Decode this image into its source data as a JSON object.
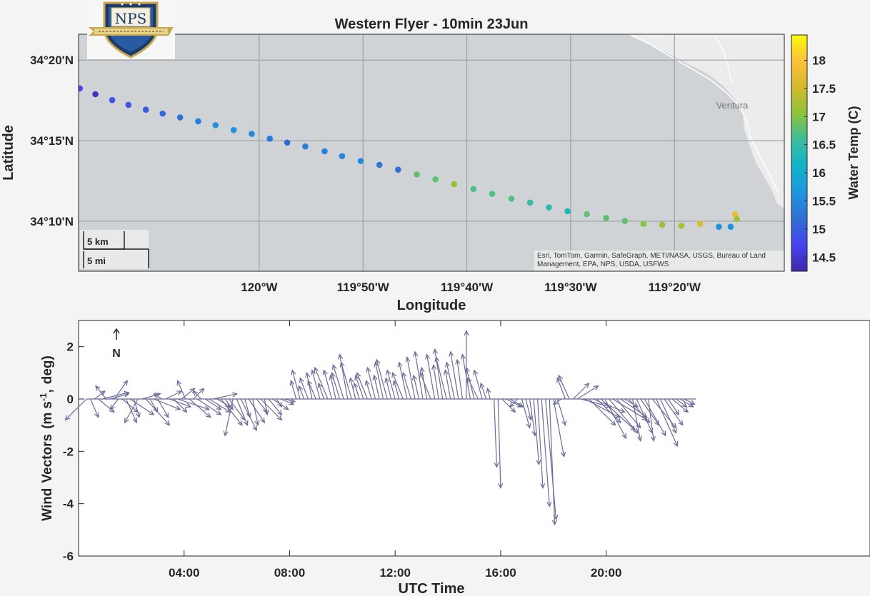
{
  "colors": {
    "sea": "#cfd3d5",
    "land": "#ececec",
    "grid": "#9aa0a4",
    "arrow": "#6b6b9a",
    "colormap": [
      "#3e26a8",
      "#4743f4",
      "#2f6fd2",
      "#1f96e1",
      "#0fb3c8",
      "#3cbd9b",
      "#8cc33a",
      "#d2b92b",
      "#fdc13a",
      "#f9fb0e"
    ]
  },
  "icons": {
    "logo": "nps-shield-logo",
    "north": "north-arrow-icon"
  },
  "logo": {
    "text": "NPS"
  },
  "chart_data": [
    {
      "type": "scatter",
      "title": "Western Flyer - 10min 23Jun",
      "xlabel": "Longitude",
      "ylabel": "Latitude",
      "xlim": [
        -120.29,
        -119.157
      ],
      "ylim": [
        34.115,
        34.36
      ],
      "x_ticks": [
        {
          "value": -120.0,
          "label": "120°W"
        },
        {
          "value": -119.8333,
          "label": "119°50'W"
        },
        {
          "value": -119.6667,
          "label": "119°40'W"
        },
        {
          "value": -119.5,
          "label": "119°30'W"
        },
        {
          "value": -119.3333,
          "label": "119°20'W"
        }
      ],
      "y_ticks": [
        {
          "value": 34.1667,
          "label": "34°10'N"
        },
        {
          "value": 34.25,
          "label": "34°15'N"
        },
        {
          "value": 34.3333,
          "label": "34°20'N"
        }
      ],
      "grid": true,
      "place_label": "Ventura",
      "scalebar": [
        "5 km",
        "5 mi"
      ],
      "attribution": "Esri, TomTom, Garmin, SafeGraph, METI/NASA, USGS, Bureau of Land Management, EPA, NPS, USDA, USFWS",
      "colorbar": {
        "label": "Water Temp (C)",
        "clim": [
          14.25,
          18.45
        ],
        "ticks": [
          {
            "value": 14.5,
            "label": "14.5"
          },
          {
            "value": 15,
            "label": "15"
          },
          {
            "value": 15.5,
            "label": "15.5"
          },
          {
            "value": 16,
            "label": "16"
          },
          {
            "value": 16.5,
            "label": "16.5"
          },
          {
            "value": 17,
            "label": "17"
          },
          {
            "value": 17.5,
            "label": "17.5"
          },
          {
            "value": 18,
            "label": "18"
          }
        ]
      },
      "points": [
        {
          "lon": -120.288,
          "lat": 34.304,
          "temp": 14.7
        },
        {
          "lon": -120.263,
          "lat": 34.298,
          "temp": 14.4
        },
        {
          "lon": -120.236,
          "lat": 34.292,
          "temp": 14.9
        },
        {
          "lon": -120.21,
          "lat": 34.287,
          "temp": 14.9
        },
        {
          "lon": -120.182,
          "lat": 34.282,
          "temp": 15.0
        },
        {
          "lon": -120.155,
          "lat": 34.278,
          "temp": 15.1
        },
        {
          "lon": -120.127,
          "lat": 34.274,
          "temp": 15.2
        },
        {
          "lon": -120.098,
          "lat": 34.27,
          "temp": 15.4
        },
        {
          "lon": -120.07,
          "lat": 34.266,
          "temp": 15.6
        },
        {
          "lon": -120.041,
          "lat": 34.261,
          "temp": 15.6
        },
        {
          "lon": -120.012,
          "lat": 34.257,
          "temp": 15.5
        },
        {
          "lon": -119.983,
          "lat": 34.252,
          "temp": 15.3
        },
        {
          "lon": -119.955,
          "lat": 34.248,
          "temp": 15.1
        },
        {
          "lon": -119.926,
          "lat": 34.244,
          "temp": 15.4
        },
        {
          "lon": -119.895,
          "lat": 34.239,
          "temp": 15.4
        },
        {
          "lon": -119.867,
          "lat": 34.234,
          "temp": 15.5
        },
        {
          "lon": -119.837,
          "lat": 34.229,
          "temp": 15.5
        },
        {
          "lon": -119.807,
          "lat": 34.225,
          "temp": 15.3
        },
        {
          "lon": -119.777,
          "lat": 34.22,
          "temp": 15.2
        },
        {
          "lon": -119.747,
          "lat": 34.215,
          "temp": 16.8
        },
        {
          "lon": -119.717,
          "lat": 34.21,
          "temp": 16.8
        },
        {
          "lon": -119.687,
          "lat": 34.205,
          "temp": 17.1
        },
        {
          "lon": -119.656,
          "lat": 34.2,
          "temp": 16.7
        },
        {
          "lon": -119.626,
          "lat": 34.195,
          "temp": 16.7
        },
        {
          "lon": -119.595,
          "lat": 34.19,
          "temp": 16.7
        },
        {
          "lon": -119.565,
          "lat": 34.186,
          "temp": 16.5
        },
        {
          "lon": -119.535,
          "lat": 34.181,
          "temp": 16.4
        },
        {
          "lon": -119.505,
          "lat": 34.177,
          "temp": 16.3
        },
        {
          "lon": -119.474,
          "lat": 34.174,
          "temp": 16.8
        },
        {
          "lon": -119.443,
          "lat": 34.17,
          "temp": 16.8
        },
        {
          "lon": -119.413,
          "lat": 34.167,
          "temp": 16.8
        },
        {
          "lon": -119.383,
          "lat": 34.164,
          "temp": 17.0
        },
        {
          "lon": -119.353,
          "lat": 34.163,
          "temp": 17.1
        },
        {
          "lon": -119.322,
          "lat": 34.162,
          "temp": 17.2
        },
        {
          "lon": -119.292,
          "lat": 34.164,
          "temp": 17.6
        },
        {
          "lon": -119.262,
          "lat": 34.161,
          "temp": 15.6
        },
        {
          "lon": -119.243,
          "lat": 34.161,
          "temp": 15.6
        },
        {
          "lon": -119.236,
          "lat": 34.174,
          "temp": 17.8
        },
        {
          "lon": -119.233,
          "lat": 34.169,
          "temp": 17.2
        }
      ]
    },
    {
      "type": "quiver",
      "xlabel": "UTC Time",
      "ylabel": "Wind Vectors (m s-1, deg)",
      "ylabel_parts": [
        "Wind",
        "Vectors",
        "(m",
        "s",
        "-1",
        ",",
        "deg)"
      ],
      "north_label": "N",
      "xlim": [
        0,
        30
      ],
      "ylim": [
        -6,
        3
      ],
      "x_ticks": [
        {
          "value": 4,
          "label": "04:00"
        },
        {
          "value": 8,
          "label": "08:00"
        },
        {
          "value": 12,
          "label": "12:00"
        },
        {
          "value": 16,
          "label": "16:00"
        },
        {
          "value": 20,
          "label": "20:00"
        }
      ],
      "y_ticks": [
        {
          "value": -6,
          "label": "-6"
        },
        {
          "value": -4,
          "label": "-4"
        },
        {
          "value": -2,
          "label": "-2"
        },
        {
          "value": 0,
          "label": "0"
        },
        {
          "value": 2,
          "label": "2"
        }
      ],
      "vectors": [
        [
          0.3,
          -0.8,
          -0.8
        ],
        [
          0.45,
          0.3,
          -0.7
        ],
        [
          0.6,
          0.4,
          0.3
        ],
        [
          0.75,
          0.6,
          -0.5
        ],
        [
          0.9,
          1.0,
          0.25
        ],
        [
          1.05,
          -0.4,
          0.5
        ],
        [
          1.2,
          0.7,
          0.2
        ],
        [
          1.35,
          0.5,
          0.7
        ],
        [
          1.5,
          -0.3,
          -0.4
        ],
        [
          1.65,
          0.6,
          -0.5
        ],
        [
          1.8,
          0.4,
          -0.9
        ],
        [
          1.95,
          0.9,
          -0.6
        ],
        [
          2.1,
          0.2,
          -0.7
        ],
        [
          2.25,
          -0.5,
          -0.9
        ],
        [
          2.4,
          0.7,
          0.2
        ],
        [
          2.55,
          0.9,
          -1.0
        ],
        [
          2.7,
          0.3,
          -0.5
        ],
        [
          2.85,
          1.0,
          -0.4
        ],
        [
          3.0,
          0.4,
          -0.7
        ],
        [
          3.15,
          -0.3,
          0.2
        ],
        [
          3.3,
          0.6,
          0.3
        ],
        [
          3.45,
          0.8,
          -0.3
        ],
        [
          3.6,
          0.5,
          -0.5
        ],
        [
          3.75,
          1.2,
          -0.4
        ],
        [
          3.9,
          0.5,
          0.4
        ],
        [
          4.05,
          -0.3,
          0.7
        ],
        [
          4.2,
          0.8,
          -0.7
        ],
        [
          4.35,
          0.4,
          0.4
        ],
        [
          4.5,
          0.9,
          -0.6
        ],
        [
          4.65,
          -0.3,
          0.3
        ],
        [
          4.8,
          0.6,
          -0.4
        ],
        [
          4.95,
          0.8,
          -0.5
        ],
        [
          5.1,
          0.9,
          0.2
        ],
        [
          5.25,
          0.5,
          -0.3
        ],
        [
          5.4,
          0.8,
          -1.0
        ],
        [
          5.55,
          0.3,
          -0.4
        ],
        [
          5.7,
          0.6,
          -0.8
        ],
        [
          5.85,
          -0.3,
          -1.4
        ],
        [
          6.0,
          0.4,
          -1.0
        ],
        [
          6.15,
          0.6,
          -1.2
        ],
        [
          6.3,
          0.2,
          -0.7
        ],
        [
          6.45,
          0.6,
          -0.9
        ],
        [
          6.6,
          0.2,
          -1.0
        ],
        [
          6.75,
          0.4,
          -0.5
        ],
        [
          6.9,
          0.8,
          -0.8
        ],
        [
          7.05,
          0.1,
          -0.6
        ],
        [
          7.2,
          0.5,
          -0.6
        ],
        [
          7.35,
          0.6,
          -0.4
        ],
        [
          7.5,
          0.2,
          -0.3
        ],
        [
          7.65,
          0.5,
          -0.2
        ],
        [
          7.8,
          0.4,
          -0.1
        ],
        [
          8.25,
          -0.2,
          0.7
        ],
        [
          8.4,
          -0.3,
          1.1
        ],
        [
          8.55,
          -0.2,
          0.5
        ],
        [
          8.7,
          -0.3,
          0.8
        ],
        [
          8.85,
          -0.2,
          1.0
        ],
        [
          9.0,
          -0.3,
          0.7
        ],
        [
          9.15,
          -0.3,
          1.1
        ],
        [
          9.3,
          -0.2,
          0.6
        ],
        [
          9.45,
          -0.5,
          1.2
        ],
        [
          9.6,
          -0.3,
          1.1
        ],
        [
          9.75,
          -0.2,
          0.9
        ],
        [
          9.9,
          -0.3,
          1.0
        ],
        [
          10.05,
          -0.4,
          1.3
        ],
        [
          10.2,
          -0.3,
          1.7
        ],
        [
          10.35,
          -0.4,
          1.4
        ],
        [
          10.5,
          -0.2,
          0.8
        ],
        [
          10.65,
          -0.2,
          0.6
        ],
        [
          10.8,
          -0.3,
          0.9
        ],
        [
          10.95,
          -0.4,
          1.0
        ],
        [
          11.1,
          -0.2,
          0.7
        ],
        [
          11.25,
          -0.3,
          1.2
        ],
        [
          11.4,
          -0.2,
          0.9
        ],
        [
          11.55,
          -0.3,
          1.4
        ],
        [
          11.7,
          -0.4,
          1.5
        ],
        [
          11.85,
          -0.2,
          0.8
        ],
        [
          12.0,
          -0.3,
          1.1
        ],
        [
          12.15,
          -0.2,
          0.7
        ],
        [
          12.3,
          -0.4,
          1.0
        ],
        [
          12.45,
          -0.3,
          1.4
        ],
        [
          12.6,
          -0.3,
          1.0
        ],
        [
          12.75,
          -0.3,
          1.6
        ],
        [
          12.9,
          -0.2,
          0.9
        ],
        [
          13.05,
          -0.3,
          1.8
        ],
        [
          13.2,
          -0.2,
          1.2
        ],
        [
          13.35,
          -0.4,
          1.0
        ],
        [
          13.5,
          -0.3,
          1.7
        ],
        [
          13.65,
          -0.2,
          1.3
        ],
        [
          13.8,
          -0.3,
          1.9
        ],
        [
          13.95,
          -0.4,
          1.6
        ],
        [
          14.1,
          -0.2,
          1.1
        ],
        [
          14.25,
          -0.3,
          1.4
        ],
        [
          14.4,
          -0.3,
          1.8
        ],
        [
          14.55,
          -0.2,
          1.5
        ],
        [
          14.7,
          0.0,
          2.6
        ],
        [
          14.85,
          -0.3,
          1.7
        ],
        [
          15.0,
          -0.3,
          1.2
        ],
        [
          15.15,
          -0.4,
          0.8
        ],
        [
          15.3,
          -0.3,
          1.1
        ],
        [
          15.45,
          -0.2,
          0.6
        ],
        [
          15.6,
          -0.1,
          0.4
        ],
        [
          15.75,
          0.1,
          -2.6
        ],
        [
          15.9,
          0.1,
          -3.4
        ],
        [
          16.05,
          0.5,
          -0.5
        ],
        [
          16.2,
          0.6,
          -0.3
        ],
        [
          16.35,
          0.5,
          -0.3
        ],
        [
          16.65,
          -0.3,
          -0.3
        ],
        [
          16.8,
          0.3,
          -1.1
        ],
        [
          16.95,
          0.2,
          -0.8
        ],
        [
          17.1,
          0.2,
          -1.4
        ],
        [
          17.25,
          0.2,
          -2.5
        ],
        [
          17.4,
          0.2,
          -3.4
        ],
        [
          17.55,
          0.3,
          -4.1
        ],
        [
          17.7,
          0.4,
          -4.6
        ],
        [
          17.85,
          0.2,
          -4.8
        ],
        [
          18.0,
          0.4,
          -2.2
        ],
        [
          18.15,
          0.3,
          -1.0
        ],
        [
          18.3,
          -0.3,
          -0.2
        ],
        [
          18.45,
          -0.3,
          0.8
        ],
        [
          18.6,
          -0.4,
          0.9
        ],
        [
          18.75,
          0.6,
          0.6
        ],
        [
          18.9,
          0.8,
          0.5
        ],
        [
          19.05,
          1.1,
          -0.3
        ],
        [
          19.2,
          1.3,
          -0.7
        ],
        [
          19.35,
          1.0,
          -1.0
        ],
        [
          19.5,
          1.2,
          -0.5
        ],
        [
          19.65,
          0.9,
          -0.9
        ],
        [
          19.8,
          1.3,
          -1.2
        ],
        [
          19.95,
          0.8,
          -1.5
        ],
        [
          20.1,
          1.1,
          -1.3
        ],
        [
          20.25,
          1.3,
          -0.8
        ],
        [
          20.4,
          0.9,
          -1.1
        ],
        [
          20.55,
          1.0,
          -0.7
        ],
        [
          20.7,
          0.5,
          -0.3
        ],
        [
          20.85,
          0.8,
          -0.9
        ],
        [
          21.0,
          0.3,
          -1.6
        ],
        [
          21.15,
          0.6,
          -1.3
        ],
        [
          21.3,
          0.7,
          -1.0
        ],
        [
          21.45,
          0.8,
          -1.4
        ],
        [
          21.6,
          0.2,
          -1.6
        ],
        [
          21.75,
          0.9,
          -1.1
        ],
        [
          21.9,
          0.8,
          -1.8
        ],
        [
          22.05,
          0.6,
          -1.3
        ],
        [
          22.2,
          0.7,
          -1.0
        ],
        [
          22.35,
          0.4,
          -0.6
        ],
        [
          22.5,
          0.6,
          -0.5
        ],
        [
          22.65,
          0.4,
          -0.3
        ],
        [
          22.8,
          0.5,
          -0.3
        ],
        [
          22.95,
          0.4,
          -0.2
        ]
      ]
    }
  ]
}
